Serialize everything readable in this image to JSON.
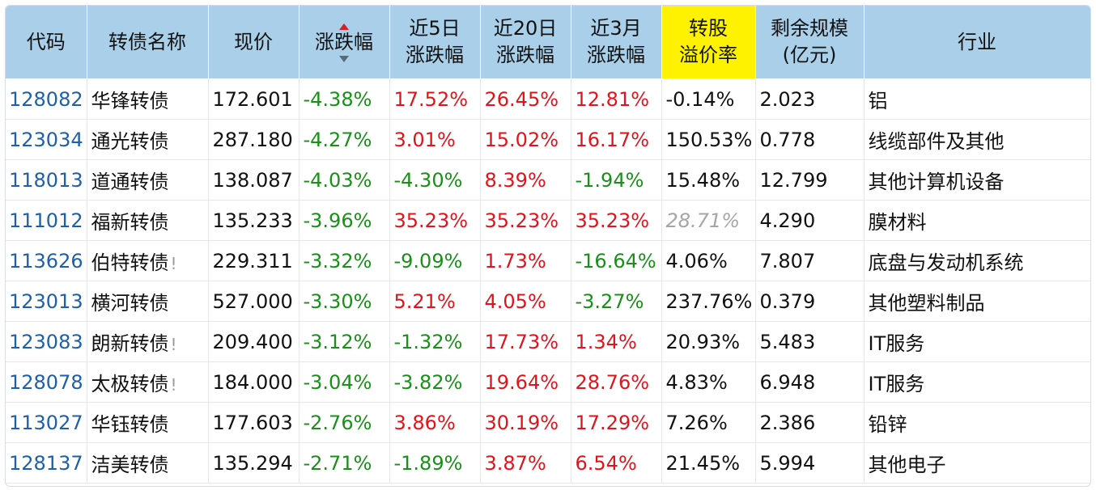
{
  "colors": {
    "header_bg": "#a9cfe9",
    "highlight_header": "#fff200",
    "up": "#e0151b",
    "down": "#1a8f1a",
    "code": "#1f5fa6"
  },
  "sort": {
    "column": "涨跌幅",
    "icon": "sort-arrows-icon"
  },
  "headers": {
    "code": "代码",
    "name": "转债名称",
    "price": "现价",
    "change": "涨跌幅",
    "change5_l1": "近5日",
    "change5_l2": "涨跌幅",
    "change20_l1": "近20日",
    "change20_l2": "涨跌幅",
    "change3m_l1": "近3月",
    "change3m_l2": "涨跌幅",
    "premium_l1": "转股",
    "premium_l2": "溢价率",
    "scale_l1": "剩余规模",
    "scale_l2": "(亿元)",
    "industry": "行业"
  },
  "rows": [
    {
      "code": "128082",
      "name": "华锋转债",
      "warn": "",
      "price": "172.601",
      "change": "-4.38%",
      "d5": "17.52%",
      "d20": "26.45%",
      "m3": "12.81%",
      "premium": "-0.14%",
      "scale": "2.023",
      "industry": "铝"
    },
    {
      "code": "123034",
      "name": "通光转债",
      "warn": "",
      "price": "287.180",
      "change": "-4.27%",
      "d5": "3.01%",
      "d20": "15.02%",
      "m3": "16.17%",
      "premium": "150.53%",
      "scale": "0.778",
      "industry": "线缆部件及其他"
    },
    {
      "code": "118013",
      "name": "道通转债",
      "warn": "",
      "price": "138.087",
      "change": "-4.03%",
      "d5": "-4.30%",
      "d20": "8.39%",
      "m3": "-1.94%",
      "premium": "15.48%",
      "scale": "12.799",
      "industry": "其他计算机设备"
    },
    {
      "code": "111012",
      "name": "福新转债",
      "warn": "",
      "price": "135.233",
      "change": "-3.96%",
      "d5": "35.23%",
      "d20": "35.23%",
      "m3": "35.23%",
      "premium": "28.71%",
      "scale": "4.290",
      "industry": "膜材料"
    },
    {
      "code": "113626",
      "name": "伯特转债",
      "warn": "!",
      "price": "229.311",
      "change": "-3.32%",
      "d5": "-9.09%",
      "d20": "1.73%",
      "m3": "-16.64%",
      "premium": "4.06%",
      "scale": "7.807",
      "industry": "底盘与发动机系统"
    },
    {
      "code": "123013",
      "name": "横河转债",
      "warn": "",
      "price": "527.000",
      "change": "-3.30%",
      "d5": "5.21%",
      "d20": "4.05%",
      "m3": "-3.27%",
      "premium": "237.76%",
      "scale": "0.379",
      "industry": "其他塑料制品"
    },
    {
      "code": "123083",
      "name": "朗新转债",
      "warn": "!",
      "price": "209.400",
      "change": "-3.12%",
      "d5": "-1.32%",
      "d20": "17.73%",
      "m3": "1.34%",
      "premium": "20.93%",
      "scale": "5.483",
      "industry": "IT服务"
    },
    {
      "code": "128078",
      "name": "太极转债",
      "warn": "!",
      "price": "184.000",
      "change": "-3.04%",
      "d5": "-3.82%",
      "d20": "19.64%",
      "m3": "28.76%",
      "premium": "4.83%",
      "scale": "6.948",
      "industry": "IT服务"
    },
    {
      "code": "113027",
      "name": "华钰转债",
      "warn": "",
      "price": "177.603",
      "change": "-2.76%",
      "d5": "3.86%",
      "d20": "30.19%",
      "m3": "17.29%",
      "premium": "7.26%",
      "scale": "2.386",
      "industry": "铅锌"
    },
    {
      "code": "128137",
      "name": "洁美转债",
      "warn": "",
      "price": "135.294",
      "change": "-2.71%",
      "d5": "-1.89%",
      "d20": "3.87%",
      "m3": "6.54%",
      "premium": "21.45%",
      "scale": "5.994",
      "industry": "其他电子"
    }
  ]
}
